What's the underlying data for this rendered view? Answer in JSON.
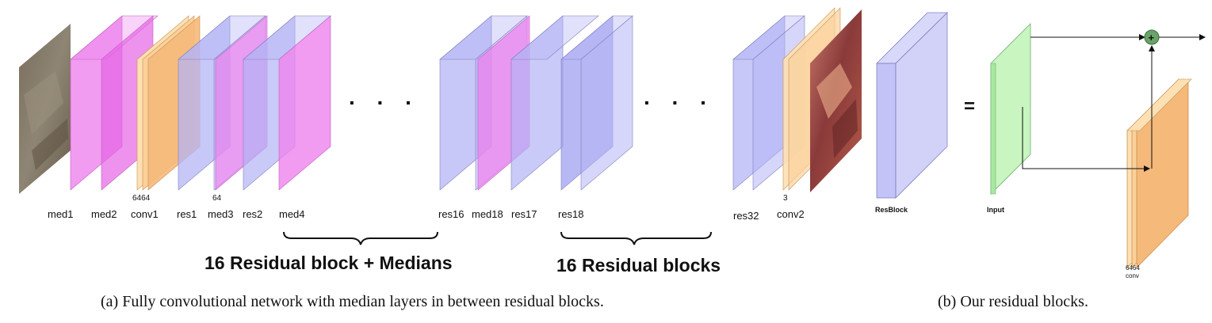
{
  "diagram_a": {
    "layer_labels": [
      "med1",
      "med2",
      "conv1",
      "res1",
      "med3",
      "res2",
      "med4",
      "res16",
      "med18",
      "res17",
      "res18",
      "res32",
      "conv2"
    ],
    "channel_labels": {
      "conv1": "6464",
      "med3": "64",
      "conv2": "3"
    },
    "ellipsis": ". . .",
    "brace_labels": [
      "16 Residual block + Medians",
      "16 Residual blocks"
    ],
    "caption": "(a) Fully convolutional network with median layers in between residual blocks."
  },
  "diagram_b": {
    "resblock_label": "ResBlock",
    "equals": "=",
    "input_label": "Input",
    "add_symbol": "+",
    "conv_channels": "6464",
    "conv_label": "conv",
    "caption": "(b) Our residual blocks."
  },
  "colors": {
    "median": "#ee82ee",
    "residual": "#b4b4f5",
    "conv": "#f5b97a",
    "conv_light": "#fde0b4",
    "input": "#c8f5c0",
    "sum_node": "#6aa36a"
  }
}
